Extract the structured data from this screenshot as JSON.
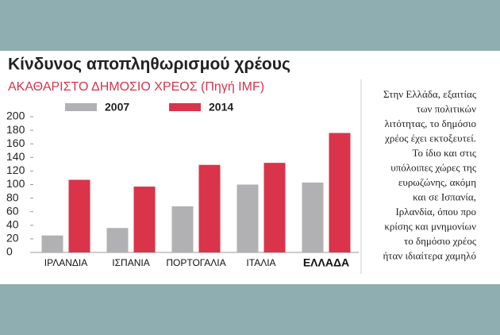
{
  "chart_data": {
    "type": "bar",
    "title": "Κίνδυνος αποπληθωρισμού χρέους",
    "subtitle": "ΑΚΑΘΑΡΙΣΤΟ ΔΗΜΟΣΙΟ ΧΡΕΟΣ (Πηγή IMF)",
    "categories": [
      "ΙΡΛΑΝΔΙΑ",
      "ΙΣΠΑΝΙΑ",
      "ΠΟΡΤΟΓΑΛΙΑ",
      "ΙΤΑΛΙΑ",
      "ΕΛΛΑΔΑ"
    ],
    "series": [
      {
        "name": "2007",
        "color": "#b1b1b3",
        "values": [
          25,
          36,
          68,
          100,
          103
        ]
      },
      {
        "name": "2014",
        "color": "#d9344a",
        "values": [
          107,
          97,
          129,
          132,
          176
        ]
      }
    ],
    "ylim": [
      0,
      200
    ],
    "yticks": [
      0,
      20,
      40,
      60,
      80,
      100,
      120,
      140,
      160,
      180,
      200
    ],
    "grid": false
  },
  "sidebar": {
    "lines": [
      "Στην Ελλάδα, εξαιτίας",
      "των πολιτικών",
      "λιτότητας, το δημόσιο",
      "χρέος έχει εκτοξευτεί.",
      "Το ίδιο και στις",
      "υπόλοιπες χώρες της",
      "ευρωζώνης, ακόμη",
      "και σε Ισπανία,",
      "Ιρλανδία, όπου προ",
      "κρίσης και μνημονίων",
      "το δημόσιο χρέος",
      "ήταν ιδιαίτερα χαμηλό"
    ]
  }
}
